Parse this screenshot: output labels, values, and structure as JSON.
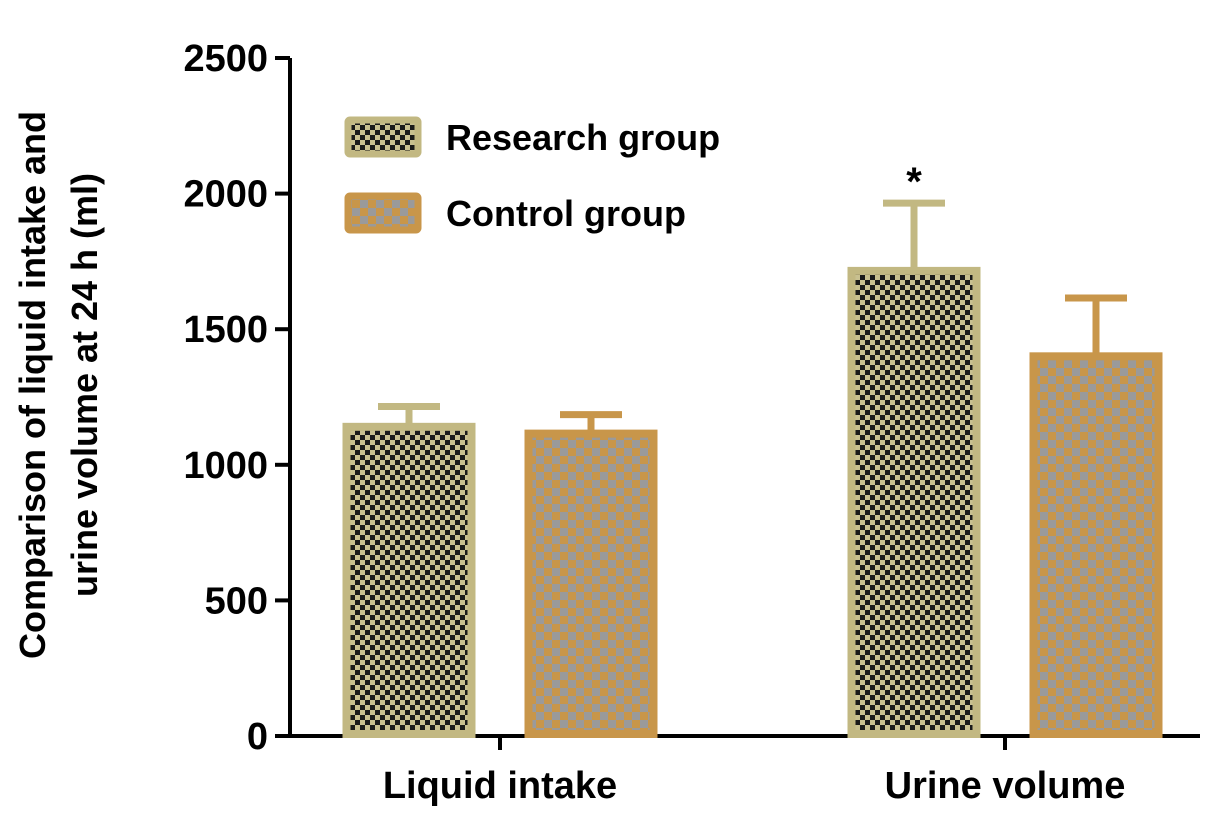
{
  "chart_data": {
    "type": "bar",
    "ylabel_line1": "Comparison of liquid intake and",
    "ylabel_line2": "urine volume at 24 h (ml)",
    "ylim": [
      0,
      2500
    ],
    "yticks": [
      "0",
      "500",
      "1000",
      "1500",
      "2000",
      "2500"
    ],
    "categories": [
      "Liquid intake",
      "Urine volume"
    ],
    "series": [
      {
        "name": "Research group",
        "values": [
          1140,
          1715
        ],
        "error": [
          75,
          250
        ],
        "fill": "#1a1a1a",
        "check": "#c8c090",
        "border": "#c2b882"
      },
      {
        "name": "Control group",
        "values": [
          1115,
          1400
        ],
        "error": [
          70,
          215
        ],
        "fill": "#c8964a",
        "check": "#9a9a9a",
        "border": "#c8964a"
      }
    ],
    "annotations": [
      {
        "text": "*",
        "category": "Urine volume",
        "series": "Research group"
      }
    ],
    "legend_position": "top-left",
    "grid": false
  }
}
